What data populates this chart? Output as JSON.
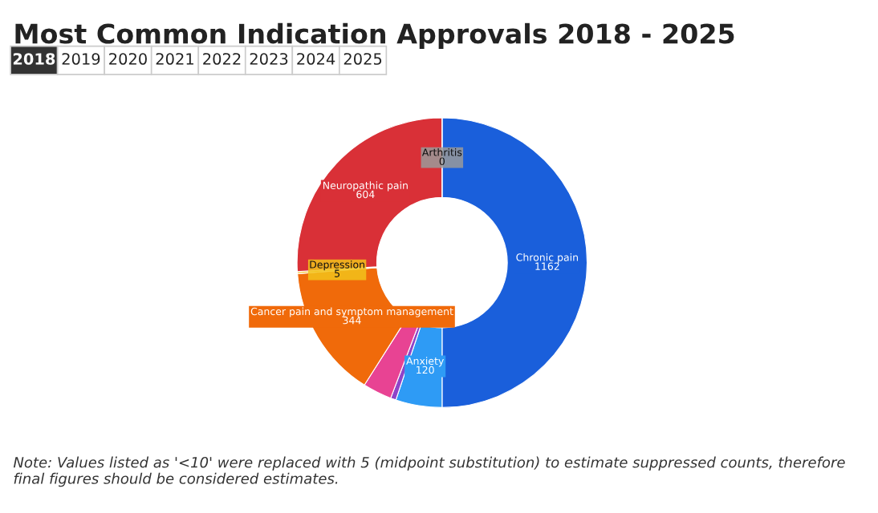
{
  "chart_data": {
    "type": "donut",
    "title": "Most Common Indication Approvals 2018 - 2025",
    "categories": [
      "Chronic pain",
      "Anxiety",
      null,
      null,
      "Cancer pain and symptom management",
      "Depression",
      "Neuropathic pain",
      "Arthritis"
    ],
    "values": [
      1162,
      120,
      14,
      75,
      344,
      5,
      604,
      0
    ],
    "value_labels": [
      "1162",
      "120",
      null,
      null,
      "344",
      "5",
      "604",
      "0"
    ],
    "colors": [
      "#1a5fdb",
      "#2e9bf5",
      "#8e44c9",
      "#e84393",
      "#f06a0a",
      "#f2c21b",
      "#d93037",
      "#9a9a9a"
    ],
    "annotations": [
      "2018",
      "2019",
      "2020",
      "2021",
      "2022",
      "2023",
      "2024",
      "2025",
      "Note: Values listed as '<10' were replaced with 5 (midpoint substitution) to estimate suppressed counts, therefore final figures should be considered estimates."
    ]
  }
}
